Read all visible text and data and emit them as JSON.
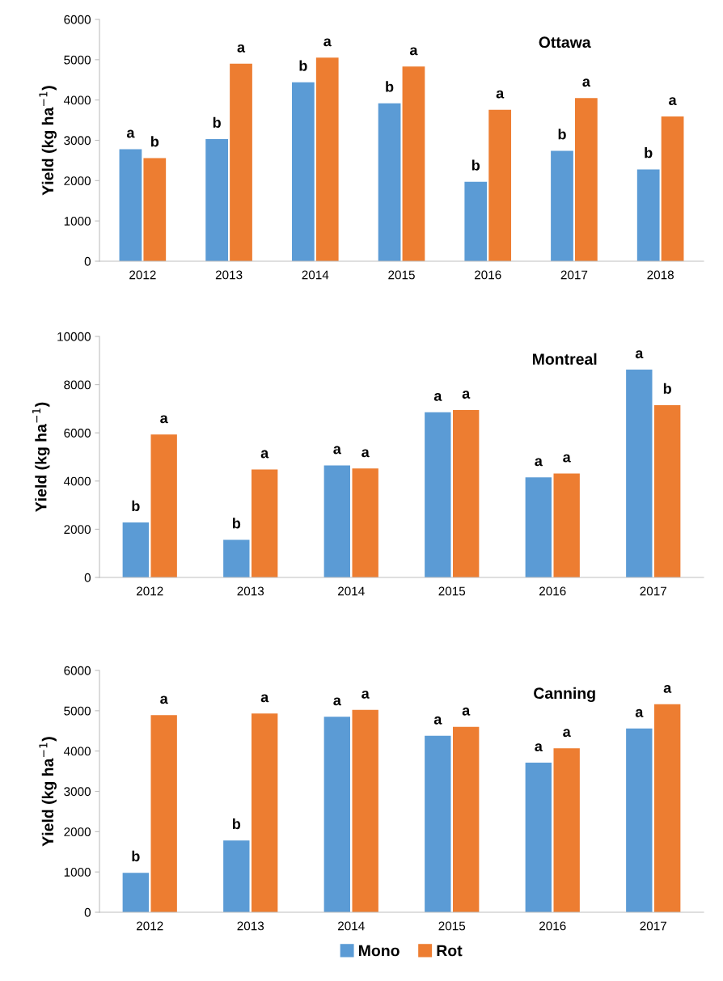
{
  "chart_data": [
    {
      "type": "bar",
      "title": "Ottawa",
      "ylabel": "Yield (kg ha$^{−1}$)",
      "categories": [
        "2012",
        "2013",
        "2014",
        "2015",
        "2016",
        "2017",
        "2018"
      ],
      "series": [
        {
          "color": "#5b9bd5",
          "values": [
            2780,
            3030,
            4440,
            3920,
            1970,
            2740,
            2280
          ]
        },
        {
          "color": "#ed7d31",
          "values": [
            2560,
            4900,
            5050,
            4830,
            3760,
            4050,
            3590
          ]
        }
      ],
      "ylim": [
        0,
        6000
      ],
      "yticks": [
        0,
        1000,
        2000,
        3000,
        4000,
        5000,
        6000
      ],
      "grid": false,
      "annotations": [
        {
          "text": "a",
          "x": "2012",
          "y": 2780
        },
        {
          "text": "b",
          "x": "2012",
          "y": 2560
        },
        {
          "text": "b",
          "x": "2013",
          "y": 3030
        },
        {
          "text": "a",
          "x": "2013",
          "y": 4900
        },
        {
          "text": "b",
          "x": "2014",
          "y": 4440
        },
        {
          "text": "a",
          "x": "2014",
          "y": 5050
        },
        {
          "text": "b",
          "x": "2015",
          "y": 3920
        },
        {
          "text": "a",
          "x": "2015",
          "y": 4830
        },
        {
          "text": "b",
          "x": "2016",
          "y": 1970
        },
        {
          "text": "a",
          "x": "2016",
          "y": 3760
        },
        {
          "text": "b",
          "x": "2017",
          "y": 2740
        },
        {
          "text": "a",
          "x": "2017",
          "y": 4050
        },
        {
          "text": "b",
          "x": "2018",
          "y": 2280
        },
        {
          "text": "a",
          "x": "2018",
          "y": 3590
        }
      ]
    },
    {
      "type": "bar",
      "title": "Montreal",
      "ylabel": "Yield (kg ha$^{−1}$)",
      "categories": [
        "2012",
        "2013",
        "2014",
        "2015",
        "2016",
        "2017"
      ],
      "series": [
        {
          "color": "#5b9bd5",
          "values": [
            2280,
            1560,
            4650,
            6850,
            4150,
            8620
          ]
        },
        {
          "color": "#ed7d31",
          "values": [
            5930,
            4480,
            4520,
            6950,
            4310,
            7150
          ]
        }
      ],
      "ylim": [
        0,
        10000
      ],
      "yticks": [
        0,
        2000,
        4000,
        6000,
        8000,
        10000
      ],
      "grid": false,
      "annotations": [
        {
          "text": "b",
          "x": "2012",
          "y": 2280
        },
        {
          "text": "a",
          "x": "2012",
          "y": 5930
        },
        {
          "text": "b",
          "x": "2013",
          "y": 1560
        },
        {
          "text": "a",
          "x": "2013",
          "y": 4480
        },
        {
          "text": "a",
          "x": "2014",
          "y": 4650
        },
        {
          "text": "a",
          "x": "2014",
          "y": 4520
        },
        {
          "text": "a",
          "x": "2015",
          "y": 6850
        },
        {
          "text": "a",
          "x": "2015",
          "y": 6950
        },
        {
          "text": "a",
          "x": "2016",
          "y": 4150
        },
        {
          "text": "a",
          "x": "2016",
          "y": 4310
        },
        {
          "text": "a",
          "x": "2017",
          "y": 8620
        },
        {
          "text": "b",
          "x": "2017",
          "y": 7150
        }
      ]
    },
    {
      "type": "bar",
      "title": "Canning",
      "ylabel": "Yield (kg ha$^{−1}$)",
      "categories": [
        "2012",
        "2013",
        "2014",
        "2015",
        "2016",
        "2017"
      ],
      "series": [
        {
          "name": "Mono",
          "color": "#5b9bd5",
          "values": [
            980,
            1780,
            4850,
            4380,
            3710,
            4560
          ]
        },
        {
          "name": "Rot",
          "color": "#ed7d31",
          "values": [
            4890,
            4930,
            5020,
            4600,
            4070,
            5160
          ]
        }
      ],
      "ylim": [
        0,
        6000
      ],
      "yticks": [
        0,
        1000,
        2000,
        3000,
        4000,
        5000,
        6000
      ],
      "grid": false,
      "legend": "bottom",
      "annotations": [
        {
          "text": "b",
          "x": "2012",
          "y": 980
        },
        {
          "text": "a",
          "x": "2012",
          "y": 4890
        },
        {
          "text": "b",
          "x": "2013",
          "y": 1780
        },
        {
          "text": "a",
          "x": "2013",
          "y": 4930
        },
        {
          "text": "a",
          "x": "2014",
          "y": 4850
        },
        {
          "text": "a",
          "x": "2014",
          "y": 5020
        },
        {
          "text": "a",
          "x": "2015",
          "y": 4380
        },
        {
          "text": "a",
          "x": "2015",
          "y": 4600
        },
        {
          "text": "a",
          "x": "2016",
          "y": 3710
        },
        {
          "text": "a",
          "x": "2016",
          "y": 4070
        },
        {
          "text": "a",
          "x": "2017",
          "y": 4560
        },
        {
          "text": "a",
          "x": "2017",
          "y": 5160
        }
      ]
    }
  ]
}
